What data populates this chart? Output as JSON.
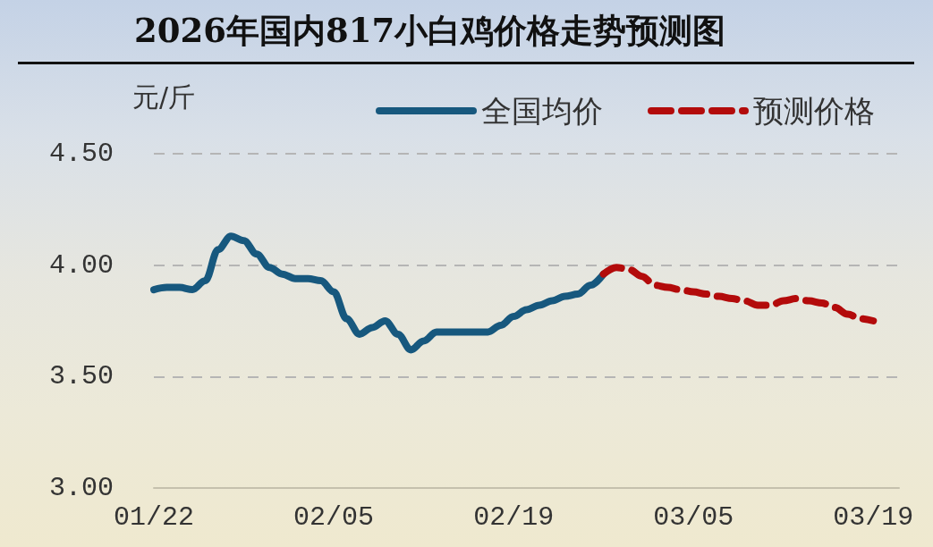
{
  "chart_data": {
    "type": "line",
    "title": "2026年国内817小白鸡价格走势预测图",
    "ylabel": "元/斤",
    "series": [
      {
        "name": "全国均价",
        "color": "#17587e",
        "line_style": "solid",
        "x": [
          "--01-22",
          "--01-23",
          "--01-24",
          "--01-25",
          "--01-26",
          "--01-27",
          "--01-28",
          "--01-29",
          "--01-30",
          "--01-31",
          "--02-01",
          "--02-02",
          "--02-03",
          "--02-04",
          "--02-05",
          "--02-06",
          "--02-07",
          "--02-08",
          "--02-09",
          "--02-10",
          "--02-11",
          "--02-12",
          "--02-13",
          "--02-14",
          "--02-15",
          "--02-16",
          "--02-17",
          "--02-18",
          "--02-19",
          "--02-20",
          "--02-21",
          "--02-22",
          "--02-23",
          "--02-24",
          "--02-25",
          "--02-26"
        ],
        "values": [
          3.89,
          3.9,
          3.9,
          3.89,
          3.93,
          4.07,
          4.13,
          4.11,
          4.05,
          3.99,
          3.96,
          3.94,
          3.94,
          3.93,
          3.88,
          3.76,
          3.69,
          3.72,
          3.75,
          3.69,
          3.62,
          3.66,
          3.7,
          3.7,
          3.7,
          3.7,
          3.7,
          3.73,
          3.77,
          3.8,
          3.82,
          3.84,
          3.86,
          3.87,
          3.91,
          3.96
        ]
      },
      {
        "name": "预测价格",
        "color": "#b30b0b",
        "line_style": "dashed",
        "x": [
          "--02-26",
          "--02-27",
          "--02-28",
          "--03-01",
          "--03-02",
          "--03-03",
          "--03-04",
          "--03-05",
          "--03-06",
          "--03-07",
          "--03-08",
          "--03-09",
          "--03-10",
          "--03-11",
          "--03-12",
          "--03-13",
          "--03-14",
          "--03-15",
          "--03-16",
          "--03-17",
          "--03-18",
          "--03-19"
        ],
        "values": [
          3.96,
          3.99,
          3.98,
          3.95,
          3.91,
          3.9,
          3.89,
          3.88,
          3.87,
          3.86,
          3.85,
          3.84,
          3.82,
          3.82,
          3.84,
          3.85,
          3.84,
          3.83,
          3.81,
          3.78,
          3.76,
          3.75
        ]
      }
    ],
    "xlim": [
      "--01-22",
      "--03-21"
    ],
    "xticks": [
      {
        "value": "--01-22",
        "label": "01/22"
      },
      {
        "value": "--02-05",
        "label": "02/05"
      },
      {
        "value": "--02-19",
        "label": "02/19"
      },
      {
        "value": "--03-05",
        "label": "03/05"
      },
      {
        "value": "--03-19",
        "label": "03/19"
      }
    ],
    "ylim": [
      3,
      4.5
    ],
    "yticks": [
      {
        "value": 3,
        "label": "3.00"
      },
      {
        "value": 3.5,
        "label": "3.50"
      },
      {
        "value": 4,
        "label": "4.00"
      },
      {
        "value": 4.5,
        "label": "4.50"
      }
    ],
    "grid": "y",
    "legend": "top right",
    "marker": "none"
  }
}
